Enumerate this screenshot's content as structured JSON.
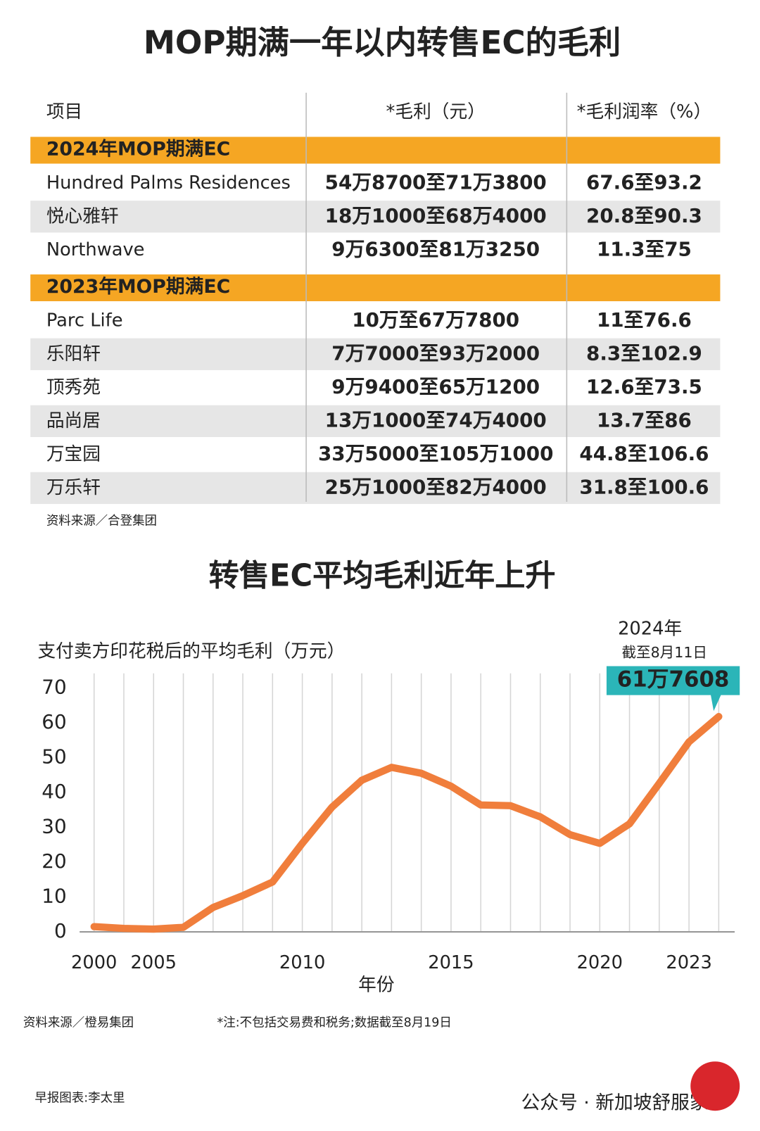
{
  "title": "MOP期满一年以内转售EC的毛利",
  "table": {
    "header": [
      "项目",
      "*毛利（元）",
      "*毛利润率（%）"
    ],
    "sections": [
      {
        "title": "2024年MOP期满EC",
        "rows": [
          [
            "Hundred Palms Residences",
            "54万8700至71万3800",
            "67.6至93.2"
          ],
          [
            "悦心雅轩",
            "18万1000至68万4000",
            "20.8至90.3"
          ],
          [
            "Northwave",
            "9万6300至81万3250",
            "11.3至75"
          ]
        ]
      },
      {
        "title": "2023年MOP期满EC",
        "rows": [
          [
            "Parc Life",
            "10万至67万7800",
            "11至76.6"
          ],
          [
            "乐阳轩",
            "7万7000至93万2000",
            "8.3至102.9"
          ],
          [
            "顶秀苑",
            "9万9400至65万1200",
            "12.6至73.5"
          ],
          [
            "品尚居",
            "13万1000至74万4000",
            "13.7至86"
          ],
          [
            "万宝园",
            "33万5000至105万1000",
            "44.8至106.6"
          ],
          [
            "万乐轩",
            "25万1000至82万4000",
            "31.8至100.6"
          ]
        ]
      }
    ],
    "source": "资料来源／合登集团"
  },
  "chart_data": {
    "type": "line",
    "title": "转售EC平均毛利近年上升",
    "y_label": "支付卖方印花税后的平均毛利（万元）",
    "x_label": "年份",
    "categories": [
      "2000",
      null,
      "2005",
      null,
      null,
      null,
      null,
      "2010",
      null,
      null,
      null,
      null,
      "2015",
      null,
      null,
      null,
      null,
      "2020",
      null,
      null,
      "2023",
      null
    ],
    "values": [
      1.5,
      1,
      0.8,
      1.3,
      7,
      10.4,
      14.3,
      25.4,
      35.8,
      43.5,
      47.2,
      45.5,
      41.8,
      36.4,
      36.2,
      33,
      27.9,
      25.4,
      31,
      42.6,
      54.5,
      61.7608
    ],
    "value_labels": [
      null,
      null,
      null,
      null,
      null,
      null,
      null,
      null,
      null,
      null,
      null,
      null,
      null,
      null,
      null,
      null,
      null,
      null,
      null,
      null,
      null,
      "61万7608"
    ],
    "color": "#f07e3c",
    "ylim": [
      0,
      70
    ],
    "yticks": [
      0,
      10,
      20,
      30,
      40,
      50,
      60,
      70
    ],
    "annotation": [
      "2024年",
      "截至8月11日"
    ],
    "source": "资料来源／橙易集团",
    "note": "*注:不包括交易费和税务;数据截至8月19日"
  },
  "footer": {
    "credit": "早报图表:李太里",
    "watermark": "公众号 · 新加坡舒服家"
  }
}
